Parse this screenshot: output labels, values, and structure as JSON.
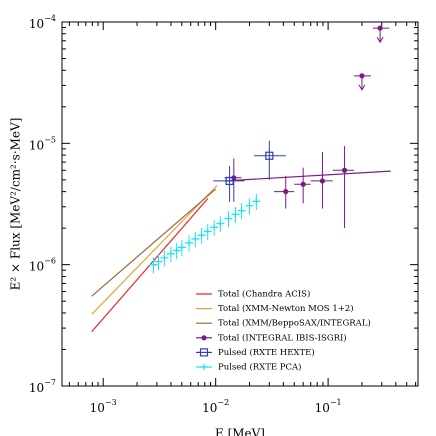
{
  "chart_data": {
    "type": "scatter",
    "x_label": "E [MeV]",
    "y_label": "E² × Flux [MeV²/cm²·s·MeV]",
    "x_log": true,
    "y_log": true,
    "minor_ticks": true,
    "xlim": [
      0.00043,
      0.63
    ],
    "ylim": [
      1e-07,
      0.0001
    ],
    "xticks": [
      {
        "value": 0.001,
        "label": "10−3"
      },
      {
        "value": 0.01,
        "label": "10−2"
      },
      {
        "value": 0.1,
        "label": "10−1"
      }
    ],
    "yticks": [
      {
        "value": 1e-07,
        "label": "10−7"
      },
      {
        "value": 1e-06,
        "label": "10−6"
      },
      {
        "value": 1e-05,
        "label": "10−5"
      },
      {
        "value": 0.0001,
        "label": "10−4"
      }
    ],
    "legend": "lower right",
    "series": [
      {
        "name": "Total (Chandra ACIS)",
        "color": "#e8222a",
        "kind": "line",
        "x": [
          0.00079,
          0.0085
        ],
        "values": [
          2.8e-07,
          3.5e-06
        ]
      },
      {
        "name": "Total (XMM-Newton MOS 1+2)",
        "color": "#e8a33a",
        "kind": "line",
        "x": [
          0.00079,
          0.0103
        ],
        "values": [
          3.9e-07,
          4.5e-06
        ]
      },
      {
        "name": "Total (XMM/BeppoSAX/INTEGRAL)",
        "color": "#9b6a3a",
        "kind": "line",
        "x": [
          0.00079,
          0.01
        ],
        "values": [
          5.5e-07,
          4.2e-06
        ]
      },
      {
        "name": "Total (INTEGRAL IBIS-ISGRI)",
        "color": "#7b1a86",
        "kind": "points",
        "marker": "circle",
        "fit_x": [
          0.0121,
          0.36
        ],
        "fit_values": [
          4.9e-06,
          5.9e-06
        ],
        "x": [
          0.0145,
          0.042,
          0.06,
          0.089,
          0.14,
          0.2,
          0.29
        ],
        "values": [
          5.2e-06,
          4e-06,
          4.6e-06,
          4.9e-06,
          6e-06,
          3.6e-05,
          8.9e-05
        ],
        "x_low": [
          0.012,
          0.033,
          0.05,
          0.07,
          0.11,
          0.17,
          0.25
        ],
        "x_high": [
          0.017,
          0.05,
          0.07,
          0.11,
          0.17,
          0.24,
          0.35
        ],
        "y_low": [
          3.3e-06,
          2.9e-06,
          3.2e-06,
          2.9e-06,
          2e-06,
          null,
          null
        ],
        "y_high": [
          7.5e-06,
          5.4e-06,
          6.3e-06,
          8.5e-06,
          9.5e-06,
          null,
          null
        ],
        "upper_limit": [
          false,
          false,
          false,
          false,
          false,
          true,
          true
        ]
      },
      {
        "name": "Pulsed (RXTE HEXTE)",
        "color": "#2c3fb0",
        "kind": "points",
        "marker": "square",
        "x": [
          0.0133,
          0.03
        ],
        "values": [
          4.9e-06,
          7.9e-06
        ],
        "x_low": [
          0.0095,
          0.022
        ],
        "x_high": [
          0.018,
          0.042
        ],
        "y_low": [
          3.3e-06,
          5e-06
        ],
        "y_high": [
          6.5e-06,
          1.05e-05
        ]
      },
      {
        "name": "Pulsed (RXTE PCA)",
        "color": "#22e4f0",
        "kind": "points",
        "marker": "cross",
        "x": [
          0.0028,
          0.0031,
          0.0035,
          0.004,
          0.0045,
          0.005,
          0.0058,
          0.0066,
          0.0075,
          0.0085,
          0.0097,
          0.011,
          0.013,
          0.015,
          0.017,
          0.02,
          0.023
        ],
        "values": [
          1e-06,
          1.06e-06,
          1.14e-06,
          1.23e-06,
          1.31e-06,
          1.39e-06,
          1.51e-06,
          1.63e-06,
          1.75e-06,
          1.88e-06,
          2.03e-06,
          2.18e-06,
          2.4e-06,
          2.6e-06,
          2.79e-06,
          3.06e-06,
          3.32e-06
        ],
        "y_low": [
          8.5e-07,
          9e-07,
          9.7e-07,
          1.05e-06,
          1.11e-06,
          1.18e-06,
          1.28e-06,
          1.39e-06,
          1.49e-06,
          1.6e-06,
          1.73e-06,
          1.85e-06,
          2.04e-06,
          2.21e-06,
          2.37e-06,
          2.6e-06,
          2.82e-06
        ],
        "y_high": [
          1.15e-06,
          1.22e-06,
          1.31e-06,
          1.41e-06,
          1.51e-06,
          1.6e-06,
          1.74e-06,
          1.87e-06,
          2.01e-06,
          2.16e-06,
          2.33e-06,
          2.51e-06,
          2.76e-06,
          2.99e-06,
          3.21e-06,
          3.52e-06,
          3.82e-06
        ]
      }
    ]
  }
}
